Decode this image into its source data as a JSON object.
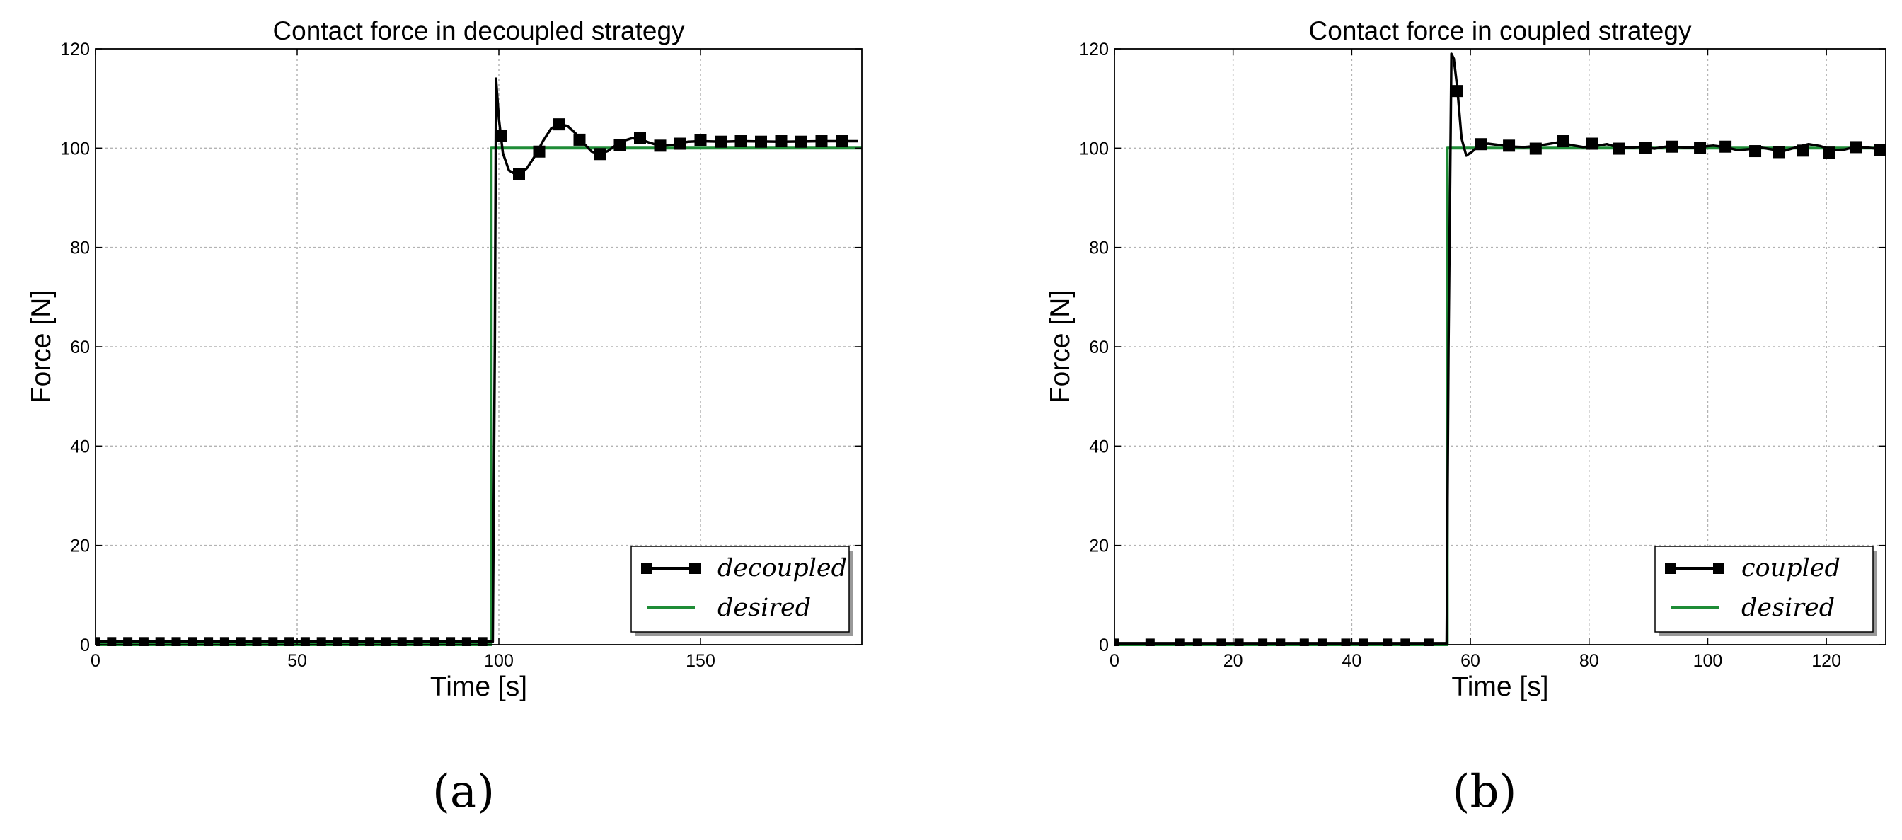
{
  "chart_data": [
    {
      "type": "line",
      "title": "Contact force in decoupled strategy",
      "xlabel": "Time [s]",
      "ylabel": "Force [N]",
      "xlim": [
        0,
        190
      ],
      "ylim": [
        0,
        120
      ],
      "xticks": [
        0,
        50,
        100,
        150
      ],
      "yticks": [
        0,
        20,
        40,
        60,
        80,
        100,
        120
      ],
      "grid": true,
      "legend_position": "bottom-right",
      "panel_label": "(a)",
      "series": [
        {
          "name": "decoupled",
          "color": "#000000",
          "marker": "square",
          "line": [
            [
              0,
              0.6
            ],
            [
              98.5,
              0.6
            ],
            [
              99,
              60
            ],
            [
              99.3,
              114
            ],
            [
              100,
              106
            ],
            [
              101,
              99
            ],
            [
              102.5,
              95.5
            ],
            [
              104,
              94.8
            ],
            [
              105.5,
              94.9
            ],
            [
              107,
              96
            ],
            [
              109,
              98.5
            ],
            [
              111,
              101.5
            ],
            [
              113,
              104
            ],
            [
              115,
              104.8
            ],
            [
              117,
              104.5
            ],
            [
              119,
              103
            ],
            [
              121,
              101
            ],
            [
              123,
              99.3
            ],
            [
              125,
              98.8
            ],
            [
              127,
              99.4
            ],
            [
              129,
              100.6
            ],
            [
              131,
              101.5
            ],
            [
              133,
              102
            ],
            [
              135,
              101.8
            ],
            [
              137,
              101.2
            ],
            [
              139,
              100.7
            ],
            [
              141,
              100.5
            ],
            [
              143,
              100.6
            ],
            [
              145,
              101
            ],
            [
              147,
              101.3
            ],
            [
              150,
              101.4
            ],
            [
              155,
              101.3
            ],
            [
              160,
              101.4
            ],
            [
              170,
              101.3
            ],
            [
              180,
              101.4
            ],
            [
              189,
              101.4
            ]
          ],
          "markers": [
            [
              0,
              0.6
            ],
            [
              4,
              0.6
            ],
            [
              8,
              0.6
            ],
            [
              12,
              0.6
            ],
            [
              16,
              0.6
            ],
            [
              20,
              0.6
            ],
            [
              24,
              0.6
            ],
            [
              28,
              0.6
            ],
            [
              32,
              0.6
            ],
            [
              36,
              0.6
            ],
            [
              40,
              0.6
            ],
            [
              44,
              0.6
            ],
            [
              48,
              0.6
            ],
            [
              52,
              0.6
            ],
            [
              56,
              0.6
            ],
            [
              60,
              0.6
            ],
            [
              64,
              0.6
            ],
            [
              68,
              0.6
            ],
            [
              72,
              0.6
            ],
            [
              76,
              0.6
            ],
            [
              80,
              0.6
            ],
            [
              84,
              0.6
            ],
            [
              88,
              0.6
            ],
            [
              92,
              0.6
            ],
            [
              96,
              0.6
            ],
            [
              100.5,
              102.5
            ],
            [
              105,
              94.8
            ],
            [
              110,
              99.3
            ],
            [
              115,
              104.8
            ],
            [
              120,
              101.7
            ],
            [
              125,
              98.8
            ],
            [
              130,
              100.6
            ],
            [
              135,
              102.1
            ],
            [
              140,
              100.5
            ],
            [
              145,
              100.9
            ],
            [
              150,
              101.6
            ],
            [
              155,
              101.3
            ],
            [
              160,
              101.4
            ],
            [
              165,
              101.3
            ],
            [
              170,
              101.4
            ],
            [
              175,
              101.3
            ],
            [
              180,
              101.4
            ],
            [
              185,
              101.4
            ]
          ]
        },
        {
          "name": "desired",
          "color": "#1e8c36",
          "marker": "none",
          "line": [
            [
              0,
              0
            ],
            [
              98.1,
              0
            ],
            [
              98.1,
              100
            ],
            [
              190,
              100
            ]
          ]
        }
      ]
    },
    {
      "type": "line",
      "title": "Contact force in coupled strategy",
      "xlabel": "Time [s]",
      "ylabel": "Force [N]",
      "xlim": [
        0,
        130
      ],
      "ylim": [
        0,
        120
      ],
      "xticks": [
        0,
        20,
        40,
        60,
        80,
        100,
        120
      ],
      "yticks": [
        0,
        20,
        40,
        60,
        80,
        100,
        120
      ],
      "grid": true,
      "legend_position": "bottom-right",
      "panel_label": "(b)",
      "series": [
        {
          "name": "coupled",
          "color": "#000000",
          "marker": "square",
          "line": [
            [
              0,
              0.3
            ],
            [
              56,
              0.3
            ],
            [
              56.3,
              60
            ],
            [
              56.8,
              119
            ],
            [
              57.2,
              118
            ],
            [
              57.8,
              112
            ],
            [
              58.5,
              102
            ],
            [
              59.3,
              98.5
            ],
            [
              60.3,
              99.3
            ],
            [
              61.5,
              100.6
            ],
            [
              63,
              100.9
            ],
            [
              65,
              100.6
            ],
            [
              67,
              100.3
            ],
            [
              69,
              100.2
            ],
            [
              71,
              100.4
            ],
            [
              73,
              100.8
            ],
            [
              75,
              101.2
            ],
            [
              77,
              100.6
            ],
            [
              79,
              100.2
            ],
            [
              81,
              100.4
            ],
            [
              83,
              100.8
            ],
            [
              85,
              100.1
            ],
            [
              87,
              100.1
            ],
            [
              89,
              100.3
            ],
            [
              91,
              99.9
            ],
            [
              93,
              100.3
            ],
            [
              95,
              100.2
            ],
            [
              97,
              100.1
            ],
            [
              99,
              100.3
            ],
            [
              101,
              100.5
            ],
            [
              103,
              100.2
            ],
            [
              105,
              99.6
            ],
            [
              107,
              99.8
            ],
            [
              109,
              100.1
            ],
            [
              111,
              99.7
            ],
            [
              113,
              99.5
            ],
            [
              115,
              100.2
            ],
            [
              117,
              100.8
            ],
            [
              119,
              100.4
            ],
            [
              121,
              99.6
            ],
            [
              123,
              99.7
            ],
            [
              125,
              100.3
            ],
            [
              127,
              100.1
            ],
            [
              129,
              99.8
            ],
            [
              130,
              99.8
            ]
          ],
          "markers": [
            [
              0,
              0.3
            ],
            [
              6,
              0.3
            ],
            [
              11,
              0.3
            ],
            [
              14,
              0.3
            ],
            [
              18,
              0.3
            ],
            [
              21,
              0.3
            ],
            [
              25,
              0.3
            ],
            [
              28,
              0.3
            ],
            [
              32,
              0.3
            ],
            [
              35,
              0.3
            ],
            [
              39,
              0.3
            ],
            [
              42,
              0.3
            ],
            [
              46,
              0.3
            ],
            [
              49,
              0.3
            ],
            [
              53,
              0.3
            ],
            [
              57.7,
              111.5
            ],
            [
              61.8,
              100.8
            ],
            [
              66.5,
              100.5
            ],
            [
              71,
              99.9
            ],
            [
              75.6,
              101.4
            ],
            [
              80.5,
              100.9
            ],
            [
              85,
              99.9
            ],
            [
              89.5,
              100.1
            ],
            [
              94,
              100.3
            ],
            [
              98.7,
              100.1
            ],
            [
              103,
              100.3
            ],
            [
              108,
              99.4
            ],
            [
              112,
              99.2
            ],
            [
              116,
              99.5
            ],
            [
              120.5,
              99.1
            ],
            [
              125,
              100.2
            ],
            [
              129,
              99.6
            ]
          ]
        },
        {
          "name": "desired",
          "color": "#1e8c36",
          "marker": "none",
          "line": [
            [
              0,
              0
            ],
            [
              56.1,
              0
            ],
            [
              56.1,
              100
            ],
            [
              130,
              100
            ]
          ]
        }
      ]
    }
  ]
}
